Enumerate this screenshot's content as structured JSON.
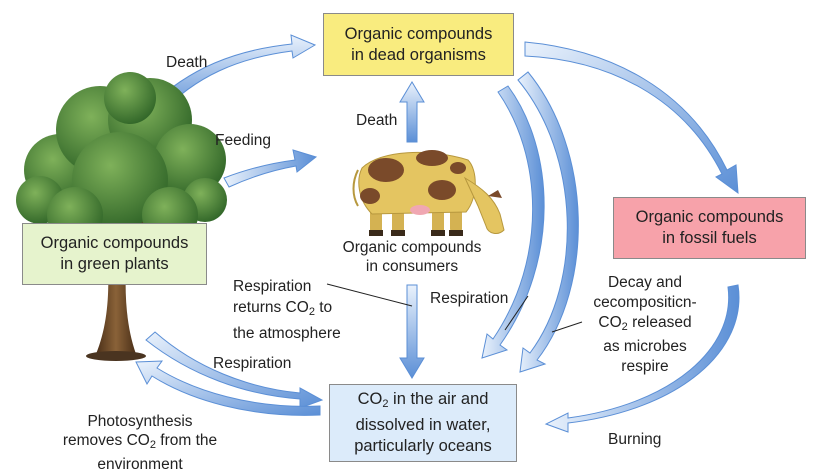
{
  "boxes": {
    "dead": {
      "line1": "Organic compounds",
      "line2": "in dead organisms",
      "fill": "#f9ec7f"
    },
    "fossil": {
      "line1": "Organic compounds",
      "line2": "in fossil fuels",
      "fill": "#f7a2aa"
    },
    "plants": {
      "line1": "Organic compounds",
      "line2": "in green plants",
      "fill": "#e6f3cd"
    },
    "air": {
      "line1_pre": "CO",
      "line1_sub": "2",
      "line1_post": " in the air and",
      "line2": "dissolved in water,",
      "line3": "particularly oceans",
      "fill": "#dcebfa"
    }
  },
  "labels": {
    "death_top": "Death",
    "feeding": "Feeding",
    "death_mid": "Death",
    "consumers_line1": "Organic compounds",
    "consumers_line2": "in consumers",
    "resp_returns_line1": "Respiration",
    "resp_returns_line2_pre": "returns CO",
    "resp_returns_line2_sub": "2",
    "resp_returns_line2_post": " to",
    "resp_returns_line3": "the atmosphere",
    "respiration_cow": "Respiration",
    "respiration_plants": "Respiration",
    "decay_line1": "Decay and",
    "decay_line2": "cecompositicn-",
    "decay_line3_pre": "CO",
    "decay_line3_sub": "2",
    "decay_line3_post": " released",
    "decay_line4": "as microbes",
    "decay_line5": "respire",
    "burning": "Burning",
    "photo_line1": "Photosynthesis",
    "photo_line2_pre": "removes CO",
    "photo_line2_sub": "2",
    "photo_line2_post": " from the",
    "photo_line3": "environment"
  },
  "colors": {
    "arrow_light": "#dde9f8",
    "arrow_dark": "#5b8fd6",
    "foliage": "#3f7d33",
    "trunk": "#6b4a2a",
    "cow_body": "#e4c561",
    "cow_spots": "#7a4a2a"
  },
  "icons": {
    "tree": "tree-illustration",
    "cow": "cow-illustration"
  }
}
